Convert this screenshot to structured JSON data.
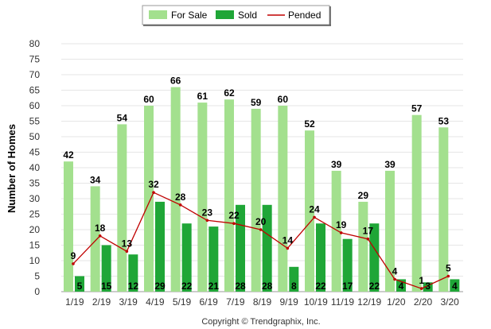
{
  "chart_data": {
    "type": "bar",
    "ylabel": "Number of Homes",
    "ylim": [
      0,
      80
    ],
    "ytick_step": 5,
    "grid": true,
    "legend_placement": "top-center",
    "categories": [
      "1/19",
      "2/19",
      "3/19",
      "4/19",
      "5/19",
      "6/19",
      "7/19",
      "8/19",
      "9/19",
      "10/19",
      "11/19",
      "12/19",
      "1/20",
      "2/20",
      "3/20"
    ],
    "series": [
      {
        "name": "For Sale",
        "type": "bar",
        "color": "#a3e08e",
        "values": [
          42,
          34,
          54,
          60,
          66,
          61,
          62,
          59,
          60,
          52,
          39,
          29,
          39,
          57,
          53
        ]
      },
      {
        "name": "Sold",
        "type": "bar",
        "color": "#1fa637",
        "values": [
          5,
          15,
          12,
          29,
          22,
          21,
          28,
          28,
          8,
          22,
          17,
          22,
          4,
          3,
          4
        ]
      },
      {
        "name": "Pended",
        "type": "line",
        "color": "#c00000",
        "values": [
          9,
          18,
          13,
          32,
          28,
          23,
          22,
          20,
          14,
          24,
          19,
          17,
          4,
          1,
          5
        ]
      }
    ],
    "footer": "Copyright © Trendgraphix, Inc."
  }
}
